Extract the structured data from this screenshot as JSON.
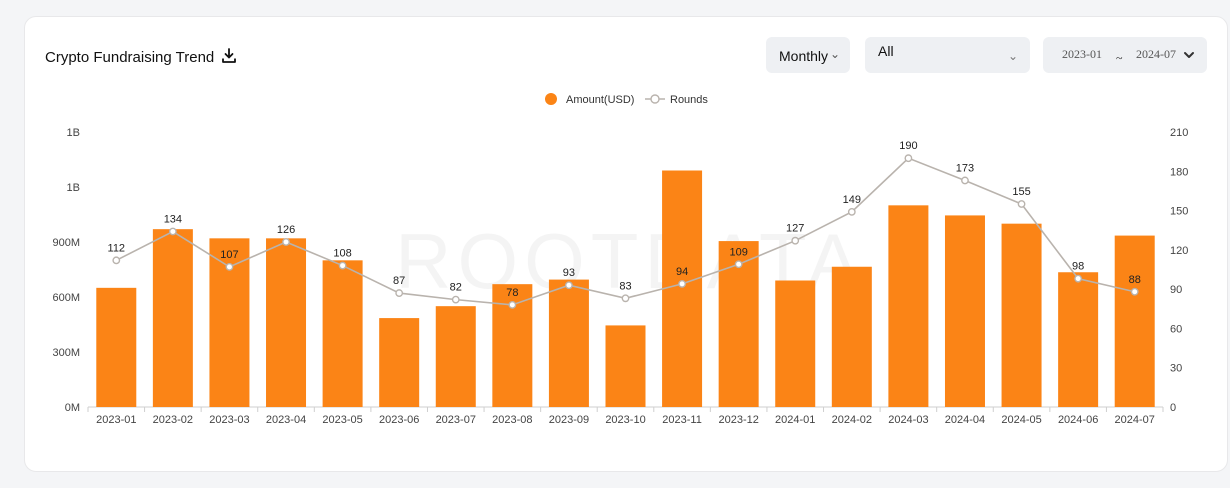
{
  "header": {
    "title": "Crypto Fundraising Trend",
    "period_select": "Monthly",
    "category_select": "All",
    "range_from": "2023-01",
    "range_sep": "~",
    "range_to": "2024-07"
  },
  "icons": {
    "download": "download-icon",
    "chevron": "chevron-down-icon"
  },
  "watermark": "ROOTDATA",
  "colors": {
    "bar": "#fb8416",
    "line": "#b9b3ad",
    "accent": "#fb8416"
  },
  "chart_data": {
    "type": "bar",
    "title": "Crypto Fundraising Trend",
    "categories": [
      "2023-01",
      "2023-02",
      "2023-03",
      "2023-04",
      "2023-05",
      "2023-06",
      "2023-07",
      "2023-08",
      "2023-09",
      "2023-10",
      "2023-11",
      "2023-12",
      "2024-01",
      "2024-02",
      "2024-03",
      "2024-04",
      "2024-05",
      "2024-06",
      "2024-07"
    ],
    "series": [
      {
        "name": "Amount(USD)",
        "type": "bar",
        "axis": "left",
        "values": [
          650000000,
          970000000,
          920000000,
          920000000,
          800000000,
          485000000,
          550000000,
          670000000,
          695000000,
          445000000,
          1290000000,
          905000000,
          690000000,
          765000000,
          1100000000,
          1045000000,
          1000000000,
          735000000,
          935000000
        ]
      },
      {
        "name": "Rounds",
        "type": "line",
        "axis": "right",
        "values": [
          112,
          134,
          107,
          126,
          108,
          87,
          82,
          78,
          93,
          83,
          94,
          109,
          127,
          149,
          190,
          173,
          155,
          98,
          88
        ]
      }
    ],
    "y_left_ticks": [
      "0M",
      "300M",
      "600M",
      "900M",
      "1B",
      "1B"
    ],
    "y_left_range": [
      0,
      1500000000
    ],
    "y_right_ticks": [
      "0",
      "30",
      "60",
      "90",
      "120",
      "150",
      "180",
      "210"
    ],
    "y_right_range": [
      0,
      210
    ],
    "legend": "top-center",
    "grid": false
  }
}
